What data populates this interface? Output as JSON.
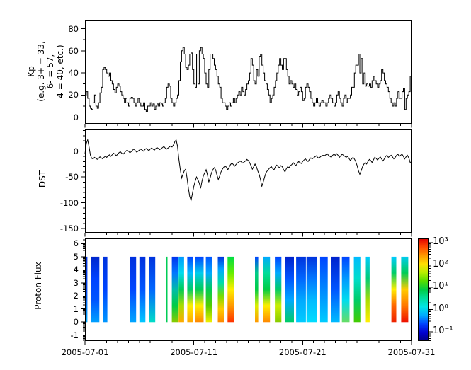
{
  "figure": {
    "background": "#ffffff",
    "line_color": "#000000"
  },
  "axes": {
    "kp": {
      "label_lines": [
        "Kp",
        "(e.g. 3+ = 33,",
        "6- = 57,",
        "4 = 40, etc.)"
      ],
      "ytick_labels": [
        "0",
        "20",
        "40",
        "60",
        "80"
      ],
      "ytick_values": [
        0,
        20,
        40,
        60,
        80
      ],
      "ytick_minor_values": [
        10,
        30,
        50,
        70
      ]
    },
    "dst": {
      "label": "DST",
      "ytick_labels": [
        "0",
        "-50",
        "-100",
        "-150"
      ],
      "ytick_values": [
        0,
        -50,
        -100,
        -150
      ]
    },
    "flux": {
      "label": "Proton Flux",
      "ytick_labels": [
        "-1",
        "0",
        "1",
        "2",
        "3",
        "4",
        "5",
        "6"
      ],
      "ytick_values": [
        -1,
        0,
        1,
        2,
        3,
        4,
        5,
        6
      ]
    },
    "x": {
      "tick_labels": [
        "2005-07-01",
        "2005-07-11",
        "2005-07-21",
        "2005-07-31"
      ],
      "tick_days": [
        0,
        10,
        20,
        30
      ],
      "minor_tick_every_days": 1
    },
    "colorbar": {
      "tick_labels": [
        "10³",
        "10²",
        "10¹",
        "10⁰",
        "10⁻¹"
      ],
      "tick_exponents": [
        3,
        2,
        1,
        0,
        -1
      ],
      "scale": "log",
      "colors_top_to_bottom": [
        "#e00000",
        "#ff4a00",
        "#ff9800",
        "#ffe000",
        "#b8ee00",
        "#55dd00",
        "#00cc44",
        "#00dd9d",
        "#00e5e5",
        "#00aaff",
        "#0044ff",
        "#0000d0",
        "#000082"
      ]
    }
  },
  "chart_data": [
    {
      "type": "line",
      "style": "steps",
      "series_name": "Kp (x10 code)",
      "x_start": "2005-07-01",
      "x_end": "2005-07-31",
      "points_per_day": 8,
      "ylim": [
        -6,
        88
      ],
      "yticks": [
        0,
        20,
        40,
        60,
        80
      ],
      "values": [
        20,
        23,
        17,
        10,
        8,
        7,
        13,
        20,
        10,
        8,
        13,
        22,
        27,
        43,
        45,
        43,
        40,
        37,
        40,
        33,
        30,
        25,
        22,
        27,
        30,
        28,
        23,
        20,
        17,
        13,
        17,
        13,
        10,
        17,
        18,
        17,
        13,
        10,
        13,
        17,
        13,
        10,
        10,
        13,
        7,
        5,
        10,
        10,
        13,
        10,
        12,
        7,
        10,
        12,
        10,
        13,
        12,
        10,
        13,
        17,
        27,
        30,
        28,
        17,
        13,
        10,
        13,
        17,
        20,
        33,
        50,
        60,
        63,
        57,
        45,
        43,
        47,
        57,
        58,
        43,
        30,
        27,
        57,
        30,
        60,
        63,
        57,
        53,
        40,
        30,
        27,
        43,
        57,
        57,
        53,
        47,
        43,
        37,
        30,
        27,
        17,
        13,
        13,
        10,
        7,
        10,
        13,
        10,
        13,
        17,
        13,
        17,
        20,
        23,
        20,
        27,
        23,
        20,
        25,
        30,
        33,
        40,
        53,
        47,
        33,
        30,
        43,
        37,
        55,
        57,
        47,
        40,
        33,
        30,
        25,
        20,
        13,
        17,
        20,
        27,
        33,
        40,
        47,
        53,
        47,
        43,
        53,
        53,
        43,
        37,
        30,
        33,
        30,
        27,
        30,
        25,
        20,
        23,
        27,
        23,
        15,
        17,
        27,
        30,
        27,
        23,
        17,
        13,
        10,
        13,
        17,
        13,
        10,
        13,
        15,
        13,
        13,
        10,
        13,
        17,
        20,
        17,
        13,
        10,
        13,
        20,
        23,
        17,
        13,
        10,
        17,
        20,
        13,
        17,
        17,
        20,
        27,
        27,
        40,
        47,
        47,
        57,
        40,
        53,
        30,
        40,
        28,
        30,
        28,
        30,
        27,
        33,
        37,
        33,
        30,
        27,
        30,
        33,
        43,
        40,
        33,
        30,
        27,
        23,
        17,
        13,
        10,
        13,
        10,
        17,
        23,
        17,
        17,
        23,
        26,
        7,
        17,
        20,
        23,
        37
      ]
    },
    {
      "type": "line",
      "style": "line",
      "series_name": "DST",
      "x_start": "2005-07-01",
      "x_end": "2005-07-31",
      "points_per_day": 8,
      "ylim": [
        -158,
        42
      ],
      "yticks": [
        0,
        -50,
        -100,
        -150
      ],
      "values": [
        -5,
        15,
        22,
        8,
        -8,
        -14,
        -15,
        -12,
        -14,
        -16,
        -14,
        -11,
        -13,
        -15,
        -12,
        -10,
        -12,
        -9,
        -7,
        -10,
        -7,
        -4,
        -6,
        -9,
        -6,
        -3,
        -1,
        -4,
        -6,
        -3,
        0,
        2,
        0,
        -3,
        -1,
        2,
        4,
        1,
        -2,
        0,
        2,
        4,
        2,
        0,
        3,
        5,
        3,
        1,
        4,
        6,
        4,
        2,
        5,
        7,
        5,
        3,
        5,
        7,
        9,
        6,
        4,
        6,
        8,
        10,
        8,
        12,
        18,
        22,
        10,
        -15,
        -35,
        -52,
        -45,
        -38,
        -35,
        -52,
        -72,
        -88,
        -95,
        -82,
        -68,
        -58,
        -50,
        -55,
        -62,
        -72,
        -58,
        -48,
        -42,
        -36,
        -46,
        -60,
        -52,
        -42,
        -36,
        -32,
        -36,
        -46,
        -55,
        -48,
        -40,
        -35,
        -31,
        -29,
        -31,
        -36,
        -31,
        -26,
        -23,
        -26,
        -29,
        -26,
        -23,
        -21,
        -19,
        -21,
        -23,
        -21,
        -19,
        -16,
        -18,
        -22,
        -28,
        -35,
        -30,
        -25,
        -30,
        -38,
        -45,
        -55,
        -68,
        -60,
        -50,
        -42,
        -38,
        -35,
        -32,
        -30,
        -34,
        -36,
        -30,
        -27,
        -30,
        -32,
        -28,
        -30,
        -36,
        -40,
        -34,
        -30,
        -32,
        -28,
        -26,
        -22,
        -25,
        -28,
        -24,
        -20,
        -22,
        -24,
        -20,
        -17,
        -15,
        -18,
        -20,
        -16,
        -13,
        -15,
        -13,
        -11,
        -9,
        -12,
        -14,
        -11,
        -9,
        -8,
        -9,
        -7,
        -5,
        -8,
        -10,
        -12,
        -8,
        -6,
        -8,
        -5,
        -8,
        -12,
        -9,
        -6,
        -8,
        -10,
        -12,
        -10,
        -14,
        -18,
        -15,
        -12,
        -15,
        -20,
        -28,
        -38,
        -45,
        -38,
        -30,
        -25,
        -22,
        -25,
        -20,
        -16,
        -18,
        -22,
        -17,
        -12,
        -14,
        -17,
        -14,
        -11,
        -15,
        -19,
        -15,
        -10,
        -8,
        -12,
        -10,
        -8,
        -11,
        -15,
        -12,
        -8,
        -6,
        -10,
        -8,
        -6,
        -10,
        -15,
        -11,
        -8,
        -13,
        -22
      ]
    },
    {
      "type": "heatmap",
      "series_name": "Proton Flux",
      "x_start": "2005-07-01",
      "x_end": "2005-07-31",
      "ylim": [
        -1.45,
        6.4
      ],
      "strip_extent_y": [
        0,
        5
      ],
      "colorbar_range_exponents": [
        -1.41,
        3.19
      ],
      "strips": [
        {
          "start_day": 0.0,
          "end_day": 0.22,
          "colors_top_to_bottom": [
            "#0033dd",
            "#0046f0",
            "#00aaff"
          ]
        },
        {
          "start_day": 0.58,
          "end_day": 1.32,
          "colors_top_to_bottom": [
            "#0026cc",
            "#0042ff",
            "#0055ff",
            "#00a0ff"
          ]
        },
        {
          "start_day": 1.66,
          "end_day": 2.06,
          "colors_top_to_bottom": [
            "#0033dd",
            "#0044ff",
            "#0096ff"
          ]
        },
        {
          "start_day": 4.1,
          "end_day": 4.7,
          "colors_top_to_bottom": [
            "#0030dd",
            "#0046ff",
            "#00a6ff"
          ]
        },
        {
          "start_day": 5.0,
          "end_day": 5.55,
          "colors_top_to_bottom": [
            "#0030dd",
            "#0055ff",
            "#00c8ff"
          ]
        },
        {
          "start_day": 5.9,
          "end_day": 6.45,
          "colors_top_to_bottom": [
            "#0033dd",
            "#0066ff",
            "#00ddc8"
          ]
        },
        {
          "start_day": 7.44,
          "end_day": 7.58,
          "colors_top_to_bottom": [
            "#00cc55",
            "#00cc55"
          ]
        },
        {
          "start_day": 7.98,
          "end_day": 8.6,
          "colors_top_to_bottom": [
            "#0033ee",
            "#0077ff",
            "#00bbaa",
            "#00cc44",
            "#88cc00"
          ]
        },
        {
          "start_day": 8.6,
          "end_day": 9.1,
          "colors_top_to_bottom": [
            "#0099ff",
            "#00ddee",
            "#00cc55",
            "#aadd00",
            "#ffaa00"
          ]
        },
        {
          "start_day": 9.4,
          "end_day": 9.95,
          "colors_top_to_bottom": [
            "#0044ff",
            "#00bbff",
            "#00cc66",
            "#ffee00",
            "#ffaa00"
          ]
        },
        {
          "start_day": 10.15,
          "end_day": 10.9,
          "colors_top_to_bottom": [
            "#0044ff",
            "#00ccee",
            "#00cc55",
            "#ffee00",
            "#ff8800"
          ]
        },
        {
          "start_day": 11.1,
          "end_day": 11.65,
          "colors_top_to_bottom": [
            "#0055ff",
            "#00aaff",
            "#00cc55",
            "#55cc00",
            "#eeee00"
          ]
        },
        {
          "start_day": 12.2,
          "end_day": 12.75,
          "colors_top_to_bottom": [
            "#0033dd",
            "#00aaff",
            "#00ddaa",
            "#77dd00",
            "#ffcc00",
            "#ff8800"
          ]
        },
        {
          "start_day": 13.1,
          "end_day": 13.7,
          "colors_top_to_bottom": [
            "#00dd44",
            "#66ee00",
            "#ffee00",
            "#ff9900",
            "#ff3300"
          ]
        },
        {
          "start_day": 15.62,
          "end_day": 15.92,
          "colors_top_to_bottom": [
            "#0044ff",
            "#00cc88",
            "#00cc44",
            "#ddee00",
            "#ff9900"
          ]
        },
        {
          "start_day": 16.4,
          "end_day": 17.0,
          "colors_top_to_bottom": [
            "#00aaff",
            "#00dd99",
            "#00cc44",
            "#ffee00",
            "#ff8800"
          ]
        },
        {
          "start_day": 17.45,
          "end_day": 18.05,
          "colors_top_to_bottom": [
            "#0044ff",
            "#00aaff",
            "#00cc66",
            "#ccee00",
            "#88cc00"
          ]
        },
        {
          "start_day": 18.4,
          "end_day": 19.2,
          "colors_top_to_bottom": [
            "#0022cc",
            "#0055ff",
            "#00aaff",
            "#00cc66"
          ]
        },
        {
          "start_day": 19.4,
          "end_day": 20.3,
          "colors_top_to_bottom": [
            "#0033dd",
            "#0066ff",
            "#00aaff",
            "#00ccff"
          ]
        },
        {
          "start_day": 20.35,
          "end_day": 21.3,
          "colors_top_to_bottom": [
            "#0033dd",
            "#0077ff",
            "#00bbff",
            "#00ddff"
          ]
        },
        {
          "start_day": 21.6,
          "end_day": 22.3,
          "colors_top_to_bottom": [
            "#0044ff",
            "#0088ff",
            "#00ccff"
          ]
        },
        {
          "start_day": 22.6,
          "end_day": 23.4,
          "colors_top_to_bottom": [
            "#0022cc",
            "#0055ff",
            "#00bbff"
          ]
        },
        {
          "start_day": 23.6,
          "end_day": 24.3,
          "colors_top_to_bottom": [
            "#0044ff",
            "#0099ff",
            "#00ddee",
            "#66dd66"
          ]
        },
        {
          "start_day": 24.7,
          "end_day": 25.3,
          "colors_top_to_bottom": [
            "#00bbff",
            "#00ddcc",
            "#00cc66",
            "#44cc00"
          ]
        },
        {
          "start_day": 25.8,
          "end_day": 26.15,
          "colors_top_to_bottom": [
            "#00ccff",
            "#00cc77",
            "#aadd00",
            "#ffee00"
          ]
        },
        {
          "start_day": 28.15,
          "end_day": 28.6,
          "colors_top_to_bottom": [
            "#00ccff",
            "#00cc66",
            "#ffee00",
            "#ff6600",
            "#ee2200"
          ]
        },
        {
          "start_day": 29.05,
          "end_day": 29.7,
          "colors_top_to_bottom": [
            "#00ccee",
            "#00cc55",
            "#ffcc00",
            "#ff7700",
            "#ee1100"
          ]
        }
      ]
    }
  ]
}
